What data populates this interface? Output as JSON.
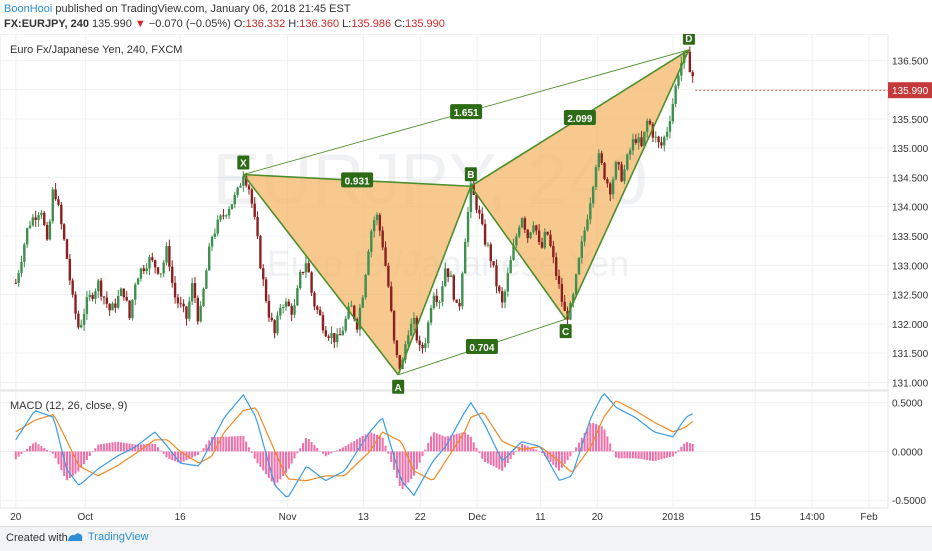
{
  "header": {
    "author": "BoonHooi",
    "published_text": "published on TradingView.com, January 06, 2018 21:45 EST",
    "symbol": "FX:EURJPY, 240",
    "last": "135.990",
    "change": "−0.070 (−0.05%)",
    "o_label": "O:",
    "o_value": "136.332",
    "h_label": "H:",
    "h_value": "136.360",
    "l_label": "L:",
    "l_value": "135.986",
    "c_label": "C:",
    "c_value": "135.990"
  },
  "chart_data": {
    "type": "candlestick",
    "instrument_label": "Euro Fx/Japanese Yen, 240, FXCM",
    "watermark_symbol": "EURJPY, 240",
    "watermark_name": "Euro Fx/Japanese Yen",
    "price_axis": {
      "ticks": [
        "136.500",
        "136.000",
        "135.500",
        "135.000",
        "134.500",
        "134.000",
        "133.500",
        "133.000",
        "132.500",
        "132.000",
        "131.500",
        "131.000"
      ],
      "range": [
        130.87,
        136.95
      ],
      "last_price_label": "135.990",
      "last_price": 135.99
    },
    "time_axis": {
      "ticks": [
        {
          "label": "20",
          "day": 0
        },
        {
          "label": "Oct",
          "day": 11
        },
        {
          "label": "16",
          "day": 26
        },
        {
          "label": "Nov",
          "day": 43
        },
        {
          "label": "13",
          "day": 55
        },
        {
          "label": "22",
          "day": 64
        },
        {
          "label": "Dec",
          "day": 73
        },
        {
          "label": "11",
          "day": 83
        },
        {
          "label": "20",
          "day": 92
        },
        {
          "label": "2018",
          "day": 104
        },
        {
          "label": "15",
          "day": 117
        },
        {
          "label": "14:00",
          "day": 126
        },
        {
          "label": "Feb",
          "day": 135
        }
      ],
      "range": [
        -2.5,
        138
      ]
    },
    "price_path": [
      [
        0,
        132.7
      ],
      [
        2,
        133.7
      ],
      [
        4,
        134.0
      ],
      [
        5,
        133.3
      ],
      [
        6,
        134.4
      ],
      [
        8,
        133.2
      ],
      [
        9,
        132.4
      ],
      [
        10,
        131.9
      ],
      [
        11,
        132.3
      ],
      [
        13,
        132.7
      ],
      [
        15,
        132.2
      ],
      [
        17,
        132.6
      ],
      [
        18,
        132.1
      ],
      [
        19,
        132.8
      ],
      [
        21,
        133.1
      ],
      [
        23,
        132.9
      ],
      [
        24,
        133.3
      ],
      [
        25,
        132.5
      ],
      [
        27,
        132.1
      ],
      [
        28,
        132.7
      ],
      [
        29,
        132.0
      ],
      [
        30,
        132.8
      ],
      [
        31,
        133.5
      ],
      [
        33,
        133.9
      ],
      [
        35,
        134.2
      ],
      [
        36,
        134.6
      ],
      [
        37,
        134.3
      ],
      [
        38,
        133.6
      ],
      [
        39,
        132.8
      ],
      [
        40,
        132.2
      ],
      [
        41,
        131.8
      ],
      [
        42,
        132.4
      ],
      [
        44,
        132.2
      ],
      [
        45,
        132.8
      ],
      [
        46,
        133.1
      ],
      [
        47,
        132.4
      ],
      [
        49,
        131.9
      ],
      [
        51,
        131.7
      ],
      [
        53,
        132.3
      ],
      [
        54,
        132.0
      ],
      [
        55,
        132.6
      ],
      [
        56,
        133.5
      ],
      [
        57,
        133.9
      ],
      [
        58,
        133.4
      ],
      [
        59,
        132.6
      ],
      [
        60,
        131.5
      ],
      [
        61,
        131.2
      ],
      [
        62,
        131.9
      ],
      [
        63,
        132.0
      ],
      [
        64,
        131.5
      ],
      [
        65,
        131.8
      ],
      [
        66,
        132.6
      ],
      [
        67,
        132.4
      ],
      [
        68,
        133.0
      ],
      [
        69,
        132.7
      ],
      [
        70,
        132.1
      ],
      [
        71,
        133.4
      ],
      [
        72,
        134.3
      ],
      [
        73,
        134.0
      ],
      [
        74,
        133.5
      ],
      [
        75,
        133.2
      ],
      [
        76,
        132.7
      ],
      [
        77,
        132.3
      ],
      [
        78,
        132.9
      ],
      [
        79,
        133.4
      ],
      [
        80,
        133.9
      ],
      [
        81,
        133.5
      ],
      [
        82,
        133.8
      ],
      [
        83,
        133.2
      ],
      [
        84,
        133.6
      ],
      [
        85,
        133.1
      ],
      [
        86,
        132.6
      ],
      [
        87,
        132.1
      ],
      [
        88,
        132.3
      ],
      [
        89,
        133.0
      ],
      [
        90,
        133.6
      ],
      [
        91,
        134.2
      ],
      [
        92,
        134.9
      ],
      [
        93,
        134.6
      ],
      [
        94,
        134.3
      ],
      [
        95,
        134.7
      ],
      [
        96,
        134.5
      ],
      [
        97,
        134.9
      ],
      [
        98,
        135.2
      ],
      [
        99,
        135.0
      ],
      [
        100,
        135.5
      ],
      [
        101,
        135.2
      ],
      [
        102,
        135.0
      ],
      [
        103,
        135.3
      ],
      [
        104,
        135.8
      ],
      [
        105,
        136.4
      ],
      [
        106,
        136.6
      ],
      [
        107,
        136.3
      ],
      [
        107.5,
        135.99
      ]
    ],
    "pattern": {
      "type": "bat-harmonic",
      "points": [
        {
          "label": "X",
          "day": 36,
          "price": 134.55
        },
        {
          "label": "A",
          "day": 60.5,
          "price": 131.13
        },
        {
          "label": "B",
          "day": 72,
          "price": 134.35
        },
        {
          "label": "C",
          "day": 87,
          "price": 132.08
        },
        {
          "label": "D",
          "day": 106.5,
          "price": 136.68
        }
      ],
      "ratios": [
        {
          "label": "0.931",
          "from": "X",
          "to": "B"
        },
        {
          "label": "0.704",
          "from": "A",
          "to": "C"
        },
        {
          "label": "2.099",
          "from": "B",
          "to": "D"
        },
        {
          "label": "1.651",
          "from": "X",
          "to": "D"
        }
      ],
      "fill_color": "#f5b464",
      "line_color": "#4d8f2a",
      "label_color": "#2e6b16"
    },
    "macd": {
      "label": "MACD (12, 26, close, 9)",
      "ticks": [
        "0.5000",
        "0.0000",
        "-0.5000"
      ],
      "range": [
        -0.58,
        0.62
      ],
      "macd_path": [
        [
          0,
          0.12
        ],
        [
          3,
          0.42
        ],
        [
          6,
          0.35
        ],
        [
          8,
          -0.18
        ],
        [
          10,
          -0.35
        ],
        [
          13,
          -0.18
        ],
        [
          16,
          -0.05
        ],
        [
          19,
          0.05
        ],
        [
          22,
          0.2
        ],
        [
          24,
          0.05
        ],
        [
          26,
          -0.12
        ],
        [
          29,
          -0.15
        ],
        [
          31,
          0.1
        ],
        [
          33,
          0.35
        ],
        [
          36,
          0.58
        ],
        [
          38,
          0.35
        ],
        [
          41,
          -0.35
        ],
        [
          43,
          -0.48
        ],
        [
          46,
          -0.15
        ],
        [
          49,
          -0.3
        ],
        [
          52,
          -0.2
        ],
        [
          56,
          0.2
        ],
        [
          58,
          0.35
        ],
        [
          61,
          -0.3
        ],
        [
          63,
          -0.45
        ],
        [
          66,
          -0.1
        ],
        [
          68,
          0.05
        ],
        [
          71,
          0.4
        ],
        [
          72,
          0.5
        ],
        [
          74,
          0.3
        ],
        [
          77,
          -0.1
        ],
        [
          80,
          0.1
        ],
        [
          83,
          0.05
        ],
        [
          86,
          -0.3
        ],
        [
          88,
          -0.25
        ],
        [
          91,
          0.35
        ],
        [
          93,
          0.6
        ],
        [
          95,
          0.45
        ],
        [
          98,
          0.35
        ],
        [
          101,
          0.2
        ],
        [
          104,
          0.15
        ],
        [
          106,
          0.35
        ],
        [
          107.5,
          0.4
        ]
      ],
      "signal_path": [
        [
          0,
          0.2
        ],
        [
          3,
          0.32
        ],
        [
          6,
          0.38
        ],
        [
          8,
          0.12
        ],
        [
          10,
          -0.15
        ],
        [
          13,
          -0.25
        ],
        [
          16,
          -0.15
        ],
        [
          19,
          -0.02
        ],
        [
          22,
          0.12
        ],
        [
          24,
          0.12
        ],
        [
          26,
          0.0
        ],
        [
          29,
          -0.12
        ],
        [
          31,
          -0.05
        ],
        [
          33,
          0.2
        ],
        [
          36,
          0.42
        ],
        [
          38,
          0.45
        ],
        [
          41,
          0.0
        ],
        [
          43,
          -0.28
        ],
        [
          46,
          -0.3
        ],
        [
          49,
          -0.25
        ],
        [
          52,
          -0.25
        ],
        [
          56,
          0.0
        ],
        [
          58,
          0.2
        ],
        [
          61,
          0.1
        ],
        [
          63,
          -0.2
        ],
        [
          66,
          -0.3
        ],
        [
          68,
          -0.1
        ],
        [
          71,
          0.2
        ],
        [
          72,
          0.35
        ],
        [
          74,
          0.4
        ],
        [
          77,
          0.1
        ],
        [
          80,
          0.02
        ],
        [
          83,
          0.05
        ],
        [
          86,
          -0.1
        ],
        [
          88,
          -0.22
        ],
        [
          91,
          0.05
        ],
        [
          93,
          0.35
        ],
        [
          95,
          0.52
        ],
        [
          98,
          0.42
        ],
        [
          101,
          0.3
        ],
        [
          104,
          0.2
        ],
        [
          106,
          0.25
        ],
        [
          107.5,
          0.33
        ]
      ],
      "macd_color": "#3b9ce6",
      "signal_color": "#f08a22",
      "hist_color": "#f06fa9"
    },
    "colors": {
      "up": "#3f8f4e",
      "down": "#8b2020"
    }
  },
  "footer": {
    "created_with": "Created with",
    "brand": "TradingView",
    "brand_color": "#2c8fd6"
  }
}
